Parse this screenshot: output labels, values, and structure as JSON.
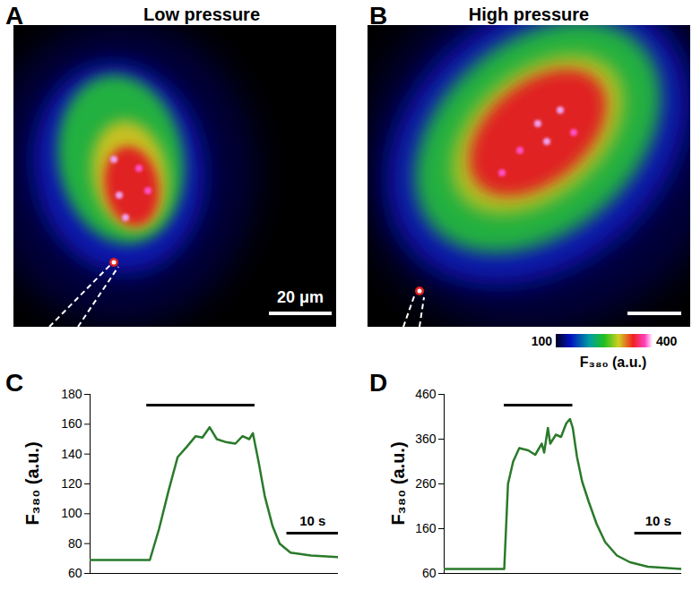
{
  "images": [
    {
      "panel": "A",
      "title": "Low pressure",
      "scale_bar": {
        "value": 20,
        "label": "20 μm"
      }
    },
    {
      "panel": "B",
      "title": "High pressure",
      "scale_bar": {
        "value": 20
      }
    }
  ],
  "color_bar": {
    "range": [
      100,
      400
    ],
    "ticks": [
      100,
      400
    ],
    "label": "F₃₈₀ (a.u.)"
  },
  "chart_data": [
    {
      "panel": "C",
      "type": "line",
      "y_label": "F₃₈₀ (a.u.)",
      "x": [
        0,
        11.6,
        13.4,
        15.2,
        17,
        18.8,
        20.5,
        21.8,
        23.2,
        24.6,
        26.4,
        28.2,
        29.6,
        30.9,
        31.6,
        32.7,
        33.9,
        35.4,
        36.8,
        38.9,
        42.9,
        48.2
      ],
      "values": [
        69,
        69,
        90,
        115,
        138,
        145,
        152,
        151,
        158,
        150,
        148,
        147,
        152,
        150,
        154,
        135,
        112,
        92,
        80,
        74,
        72,
        71
      ],
      "color": "#2a7a2a",
      "xlim": [
        0,
        48.2
      ],
      "ylim": [
        60,
        180
      ],
      "yticks": [
        60,
        80,
        100,
        120,
        140,
        160,
        180
      ],
      "tick_labels": "y",
      "stimulus": [
        11,
        32
      ],
      "scale_bar": {
        "value": 10,
        "label": "10 s"
      }
    },
    {
      "panel": "D",
      "type": "line",
      "y_label": "F₃₈₀ (a.u.)",
      "x": [
        0,
        12.8,
        13.6,
        14.7,
        16.0,
        17.9,
        19.4,
        20.8,
        21.3,
        22.1,
        22.6,
        23.8,
        24.9,
        26.0,
        26.8,
        27.4,
        28.3,
        29.4,
        30.8,
        32.5,
        34.3,
        36.8,
        39.6,
        43.4,
        50.6
      ],
      "values": [
        70,
        70,
        260,
        310,
        340,
        335,
        325,
        350,
        330,
        385,
        350,
        370,
        365,
        395,
        405,
        385,
        320,
        265,
        220,
        170,
        130,
        100,
        85,
        75,
        70
      ],
      "color": "#2a7a2a",
      "xlim": [
        0,
        50.6
      ],
      "ylim": [
        60,
        460
      ],
      "yticks": [
        60,
        160,
        260,
        360,
        460
      ],
      "tick_labels": "y",
      "stimulus": [
        12.8,
        27.4
      ],
      "scale_bar": {
        "value": 10,
        "label": "10 s"
      }
    }
  ]
}
